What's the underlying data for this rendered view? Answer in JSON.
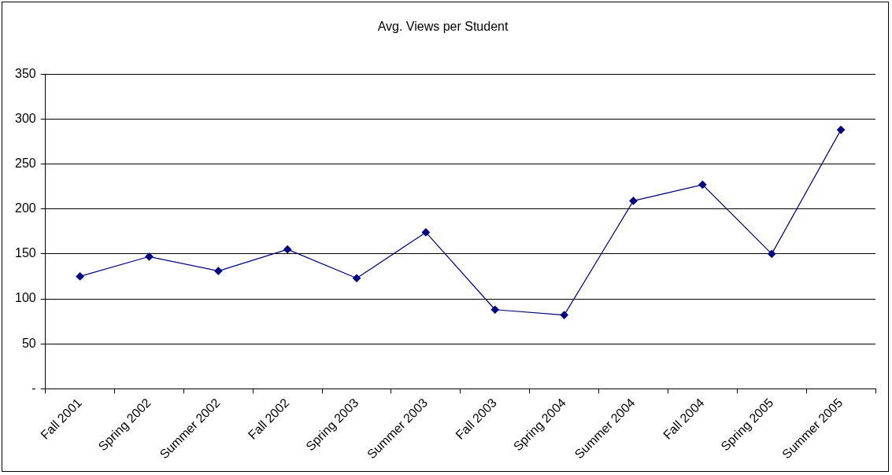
{
  "chart_data": {
    "type": "line",
    "title": "Avg. Views per Student",
    "categories": [
      "Fall 2001",
      "Spring 2002",
      "Summer 2002",
      "Fall 2002",
      "Spring 2003",
      "Summer 2003",
      "Fall 2003",
      "Spring 2004",
      "Summer 2004",
      "Fall 2004",
      "Spring 2005",
      "Summer 2005"
    ],
    "series": [
      {
        "color": "#000080",
        "values": [
          125,
          147,
          131,
          155,
          123,
          174,
          88,
          82,
          209,
          227,
          150,
          288
        ]
      }
    ],
    "ylim": [
      0,
      350
    ],
    "yticks": [
      {
        "value": 0,
        "label": "-"
      },
      50,
      100,
      150,
      200,
      250,
      300,
      350
    ],
    "grid": "y",
    "legend": false,
    "marker": "diamond",
    "line_style": "solid"
  }
}
